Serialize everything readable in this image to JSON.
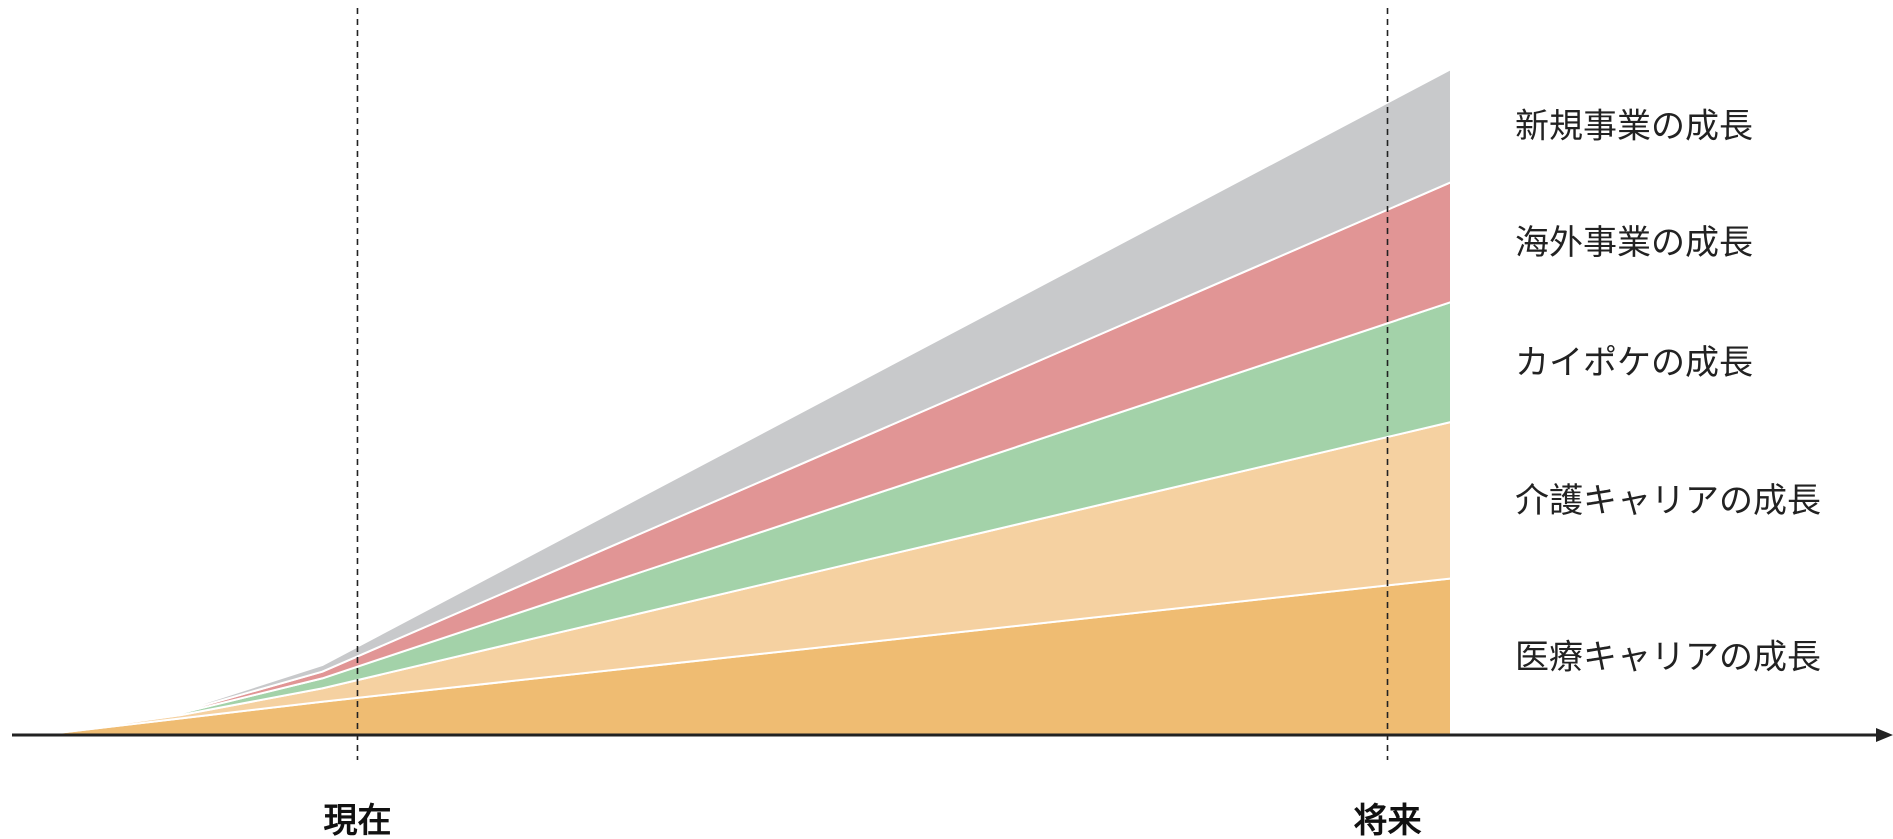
{
  "chart_data": {
    "type": "area",
    "stacked": true,
    "title": "",
    "xlabel": "",
    "ylabel": "",
    "x": [
      0,
      10,
      20,
      100
    ],
    "xlim": [
      0,
      100
    ],
    "ylim": [
      0,
      100
    ],
    "grid": false,
    "legend": "right",
    "series": [
      {
        "name": "医療キャリアの成長",
        "color": "#EFBC72",
        "values": [
          0,
          2.5,
          5,
          23.5
        ]
      },
      {
        "name": "介護キャリアの成長",
        "color": "#F5D1A1",
        "values": [
          0,
          0.5,
          2,
          23.5
        ]
      },
      {
        "name": "カイポケの成長",
        "color": "#A3D2A9",
        "values": [
          0,
          0.3,
          1.5,
          18
        ]
      },
      {
        "name": "海外事業の成長",
        "color": "#E19595",
        "values": [
          0,
          0.2,
          1,
          18
        ]
      },
      {
        "name": "新規事業の成長",
        "color": "#C8C9CB",
        "values": [
          0,
          0.2,
          1,
          17
        ]
      }
    ],
    "markers": [
      {
        "label": "現在",
        "x": 22.5
      },
      {
        "label": "将来",
        "x": 95.5
      }
    ]
  }
}
